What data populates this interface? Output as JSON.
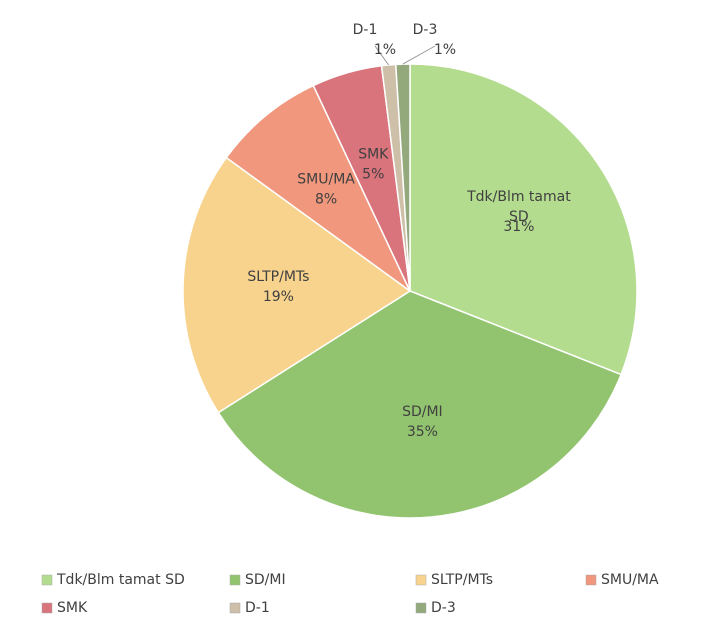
{
  "chart_data": {
    "type": "pie",
    "categories": [
      "Tdk/Blm tamat SD",
      "SD/MI",
      "SLTP/MTs",
      "SMU/MA",
      "SMK",
      "D-1",
      "D-3"
    ],
    "values": [
      31,
      35,
      19,
      8,
      5,
      1,
      1
    ],
    "value_labels": [
      "31%",
      "35%",
      "19%",
      "8%",
      "5%",
      "1%",
      "1%"
    ],
    "colors": [
      "#b3dc8f",
      "#92c46f",
      "#f7d38e",
      "#f0977d",
      "#d9737c",
      "#cdbfa8",
      "#93a97c"
    ],
    "legend": "bottom"
  }
}
